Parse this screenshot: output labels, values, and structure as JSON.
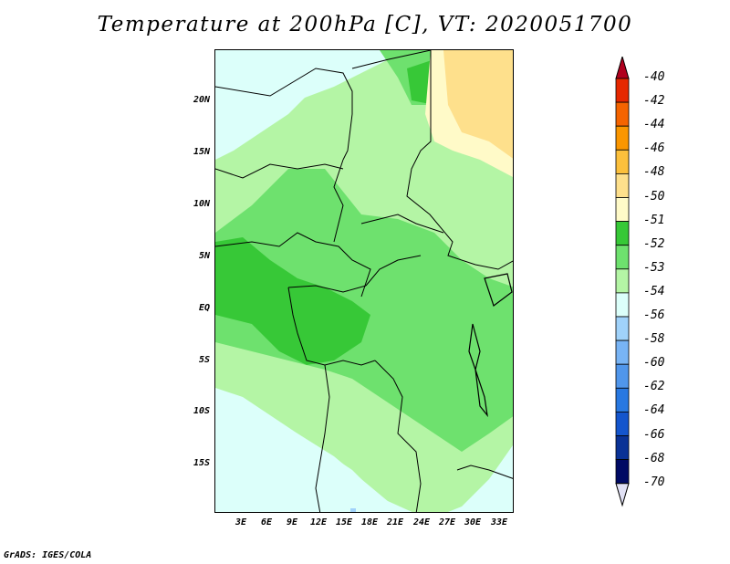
{
  "title": "Temperature at 200hPa [C], VT: 2020051700",
  "footer": "GrADS: IGES/COLA",
  "lat_labels": [
    "20N",
    "15N",
    "10N",
    "5N",
    "EQ",
    "5S",
    "10S",
    "15S"
  ],
  "lon_labels": [
    "3E",
    "6E",
    "9E",
    "12E",
    "15E",
    "18E",
    "21E",
    "24E",
    "27E",
    "30E",
    "33E"
  ],
  "legend": {
    "labels": [
      "-40",
      "-42",
      "-44",
      "-46",
      "-48",
      "-50",
      "-51",
      "-52",
      "-53",
      "-54",
      "-56",
      "-58",
      "-60",
      "-62",
      "-64",
      "-66",
      "-68",
      "-70"
    ],
    "colors": [
      "#b0001e",
      "#e62800",
      "#f56400",
      "#fa9600",
      "#fcc03c",
      "#fee08c",
      "#fffac8",
      "#37c837",
      "#6ee16e",
      "#b4f5a5",
      "#dcfffa",
      "#a0d2fa",
      "#78b4f5",
      "#5096eb",
      "#2878e1",
      "#1455cd",
      "#0a3296",
      "#000a64",
      "#e1e1f5"
    ]
  },
  "colors": {
    "light_green": "#b4f5a5",
    "mid_green": "#6ee16e",
    "dark_green": "#37c837",
    "light_cyan": "#dcfffa",
    "pale_yellow": "#fee08c",
    "light_yellow": "#fffac8",
    "light_blue": "#a0d2fa",
    "border": "#000000"
  }
}
